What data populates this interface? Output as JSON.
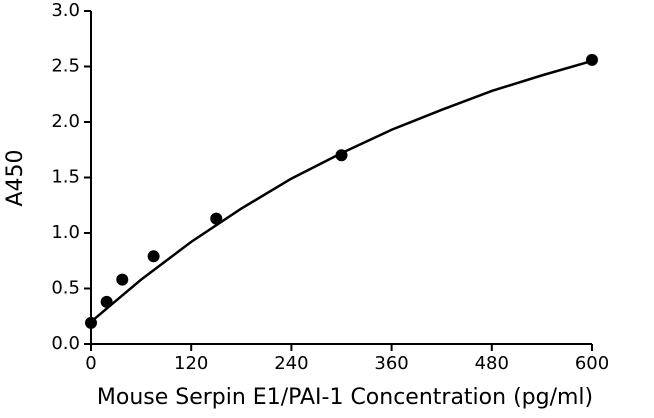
{
  "chart_data": {
    "type": "scatter",
    "x_label": "Mouse Serpin E1/PAI-1 Concentration (pg/ml)",
    "y_label": "A450",
    "xlim": [
      0,
      600
    ],
    "xticks": [
      0,
      120,
      240,
      360,
      480,
      600
    ],
    "ylim": [
      0,
      3
    ],
    "yticks": [
      {
        "value": 0,
        "label": "0.0"
      },
      0.5,
      {
        "value": 1,
        "label": "1.0"
      },
      1.5,
      {
        "value": 2,
        "label": "2.0"
      },
      2.5,
      {
        "value": 3,
        "label": "3.0"
      }
    ],
    "grid": false,
    "series": [
      {
        "mode": "markers",
        "color": "#000000",
        "x": [
          0,
          18.75,
          37.5,
          75,
          150,
          300,
          600
        ],
        "values": [
          0.19,
          0.38,
          0.58,
          0.79,
          1.13,
          1.7,
          2.56
        ]
      },
      {
        "mode": "line",
        "color": "#000000",
        "x": [
          0,
          60,
          120,
          180,
          240,
          300,
          360,
          420,
          480,
          540,
          600
        ],
        "values": [
          0.2,
          0.58,
          0.92,
          1.22,
          1.49,
          1.72,
          1.93,
          2.11,
          2.28,
          2.42,
          2.55
        ]
      }
    ]
  }
}
